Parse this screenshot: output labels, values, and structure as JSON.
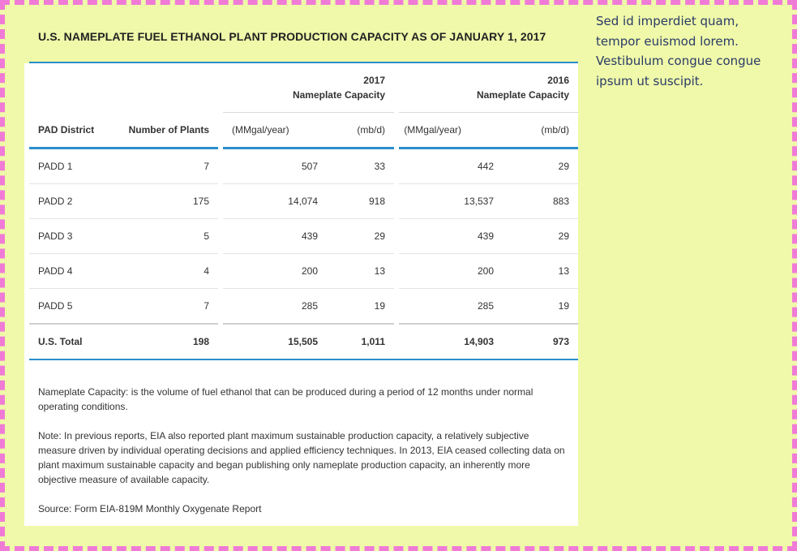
{
  "title": "U.S. NAMEPLATE FUEL ETHANOL PLANT PRODUCTION CAPACITY AS OF JANUARY 1, 2017",
  "side_text": "Sed id imperdiet quam, tempor euismod lorem. Vestibulum congue congue ipsum ut suscipit.",
  "table": {
    "group_2017_year": "2017",
    "group_2017_label": "Nameplate Capacity",
    "group_2016_year": "2016",
    "group_2016_label": "Nameplate Capacity",
    "col_district": "PAD District",
    "col_plants": "Number of Plants",
    "unit_mmgal": "(MMgal/year)",
    "unit_mbd": "(mb/d)",
    "rows": [
      {
        "district": "PADD 1",
        "plants": "7",
        "mmgal_2017": "507",
        "mbd_2017": "33",
        "mmgal_2016": "442",
        "mbd_2016": "29"
      },
      {
        "district": "PADD 2",
        "plants": "175",
        "mmgal_2017": "14,074",
        "mbd_2017": "918",
        "mmgal_2016": "13,537",
        "mbd_2016": "883"
      },
      {
        "district": "PADD 3",
        "plants": "5",
        "mmgal_2017": "439",
        "mbd_2017": "29",
        "mmgal_2016": "439",
        "mbd_2016": "29"
      },
      {
        "district": "PADD 4",
        "plants": "4",
        "mmgal_2017": "200",
        "mbd_2017": "13",
        "mmgal_2016": "200",
        "mbd_2016": "13"
      },
      {
        "district": "PADD 5",
        "plants": "7",
        "mmgal_2017": "285",
        "mbd_2017": "19",
        "mmgal_2016": "285",
        "mbd_2016": "19"
      }
    ],
    "total": {
      "district": "U.S. Total",
      "plants": "198",
      "mmgal_2017": "15,505",
      "mbd_2017": "1,011",
      "mmgal_2016": "14,903",
      "mbd_2016": "973"
    }
  },
  "notes": {
    "nameplate": "Nameplate Capacity:  is the volume of fuel ethanol that can be produced during a period of 12 months under normal operating conditions.",
    "note": "Note:  In previous reports, EIA also reported plant maximum sustainable production capacity, a relatively subjective measure driven by individual operating decisions and applied efficiency techniques. In 2013, EIA ceased collecting data on plant maximum sustainable capacity and began publishing only nameplate production capacity, an inherently more objective measure of available capacity.",
    "source": "Source: Form EIA-819M Monthly Oxygenate Report"
  },
  "colors": {
    "accent_rule": "#2a8fcb",
    "background": "#eff9a9",
    "border_dash": "#f07bd6"
  }
}
